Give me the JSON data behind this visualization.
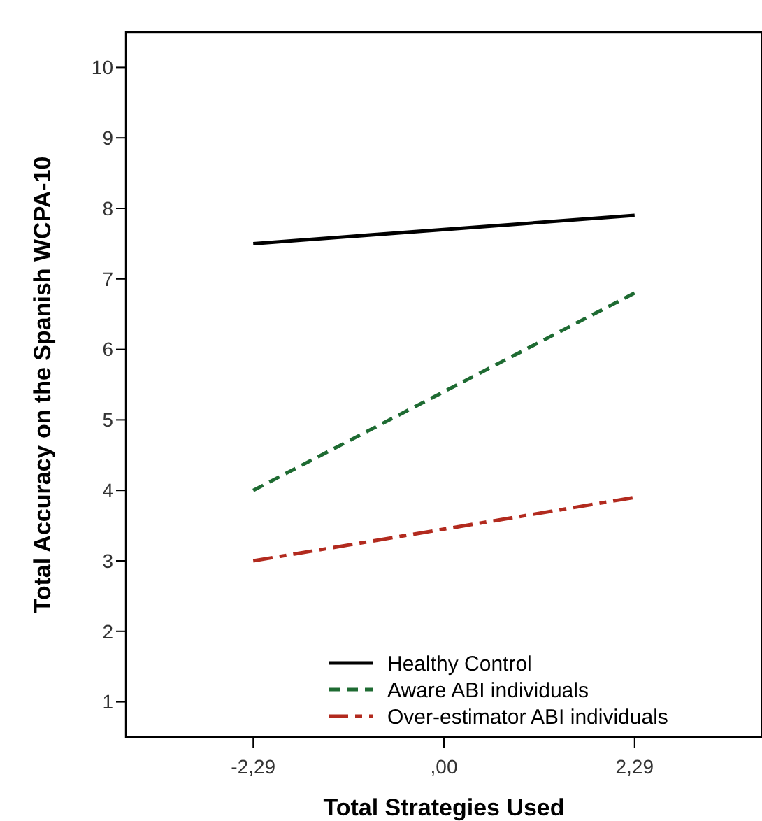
{
  "chart_data": {
    "type": "line",
    "xlabel": "Total Strategies Used",
    "ylabel": "Total Accuracy on the Spanish WCPA-10",
    "x": [
      -2.29,
      2.29
    ],
    "series": [
      {
        "name": "Healthy Control",
        "color": "#000000",
        "values": [
          7.5,
          7.9
        ],
        "line_style": "solid"
      },
      {
        "name": "Aware ABI individuals",
        "color": "#1e6b32",
        "values": [
          4.0,
          6.8
        ],
        "line_style": "dashed"
      },
      {
        "name": "Over-estimator ABI individuals",
        "color": "#b22a1e",
        "values": [
          3.0,
          3.9
        ],
        "line_style": "dashdot"
      }
    ],
    "xlim": [
      -3.82,
      3.82
    ],
    "ylim": [
      0.5,
      10.5
    ],
    "xticks": [
      {
        "value": -2.29,
        "label": "-2,29"
      },
      {
        "value": 0,
        "label": ",00"
      },
      {
        "value": 2.29,
        "label": "2,29"
      }
    ],
    "yticks": [
      1,
      2,
      3,
      4,
      5,
      6,
      7,
      8,
      9,
      10
    ],
    "grid": false,
    "legend": "bottom right",
    "marker": "none"
  }
}
